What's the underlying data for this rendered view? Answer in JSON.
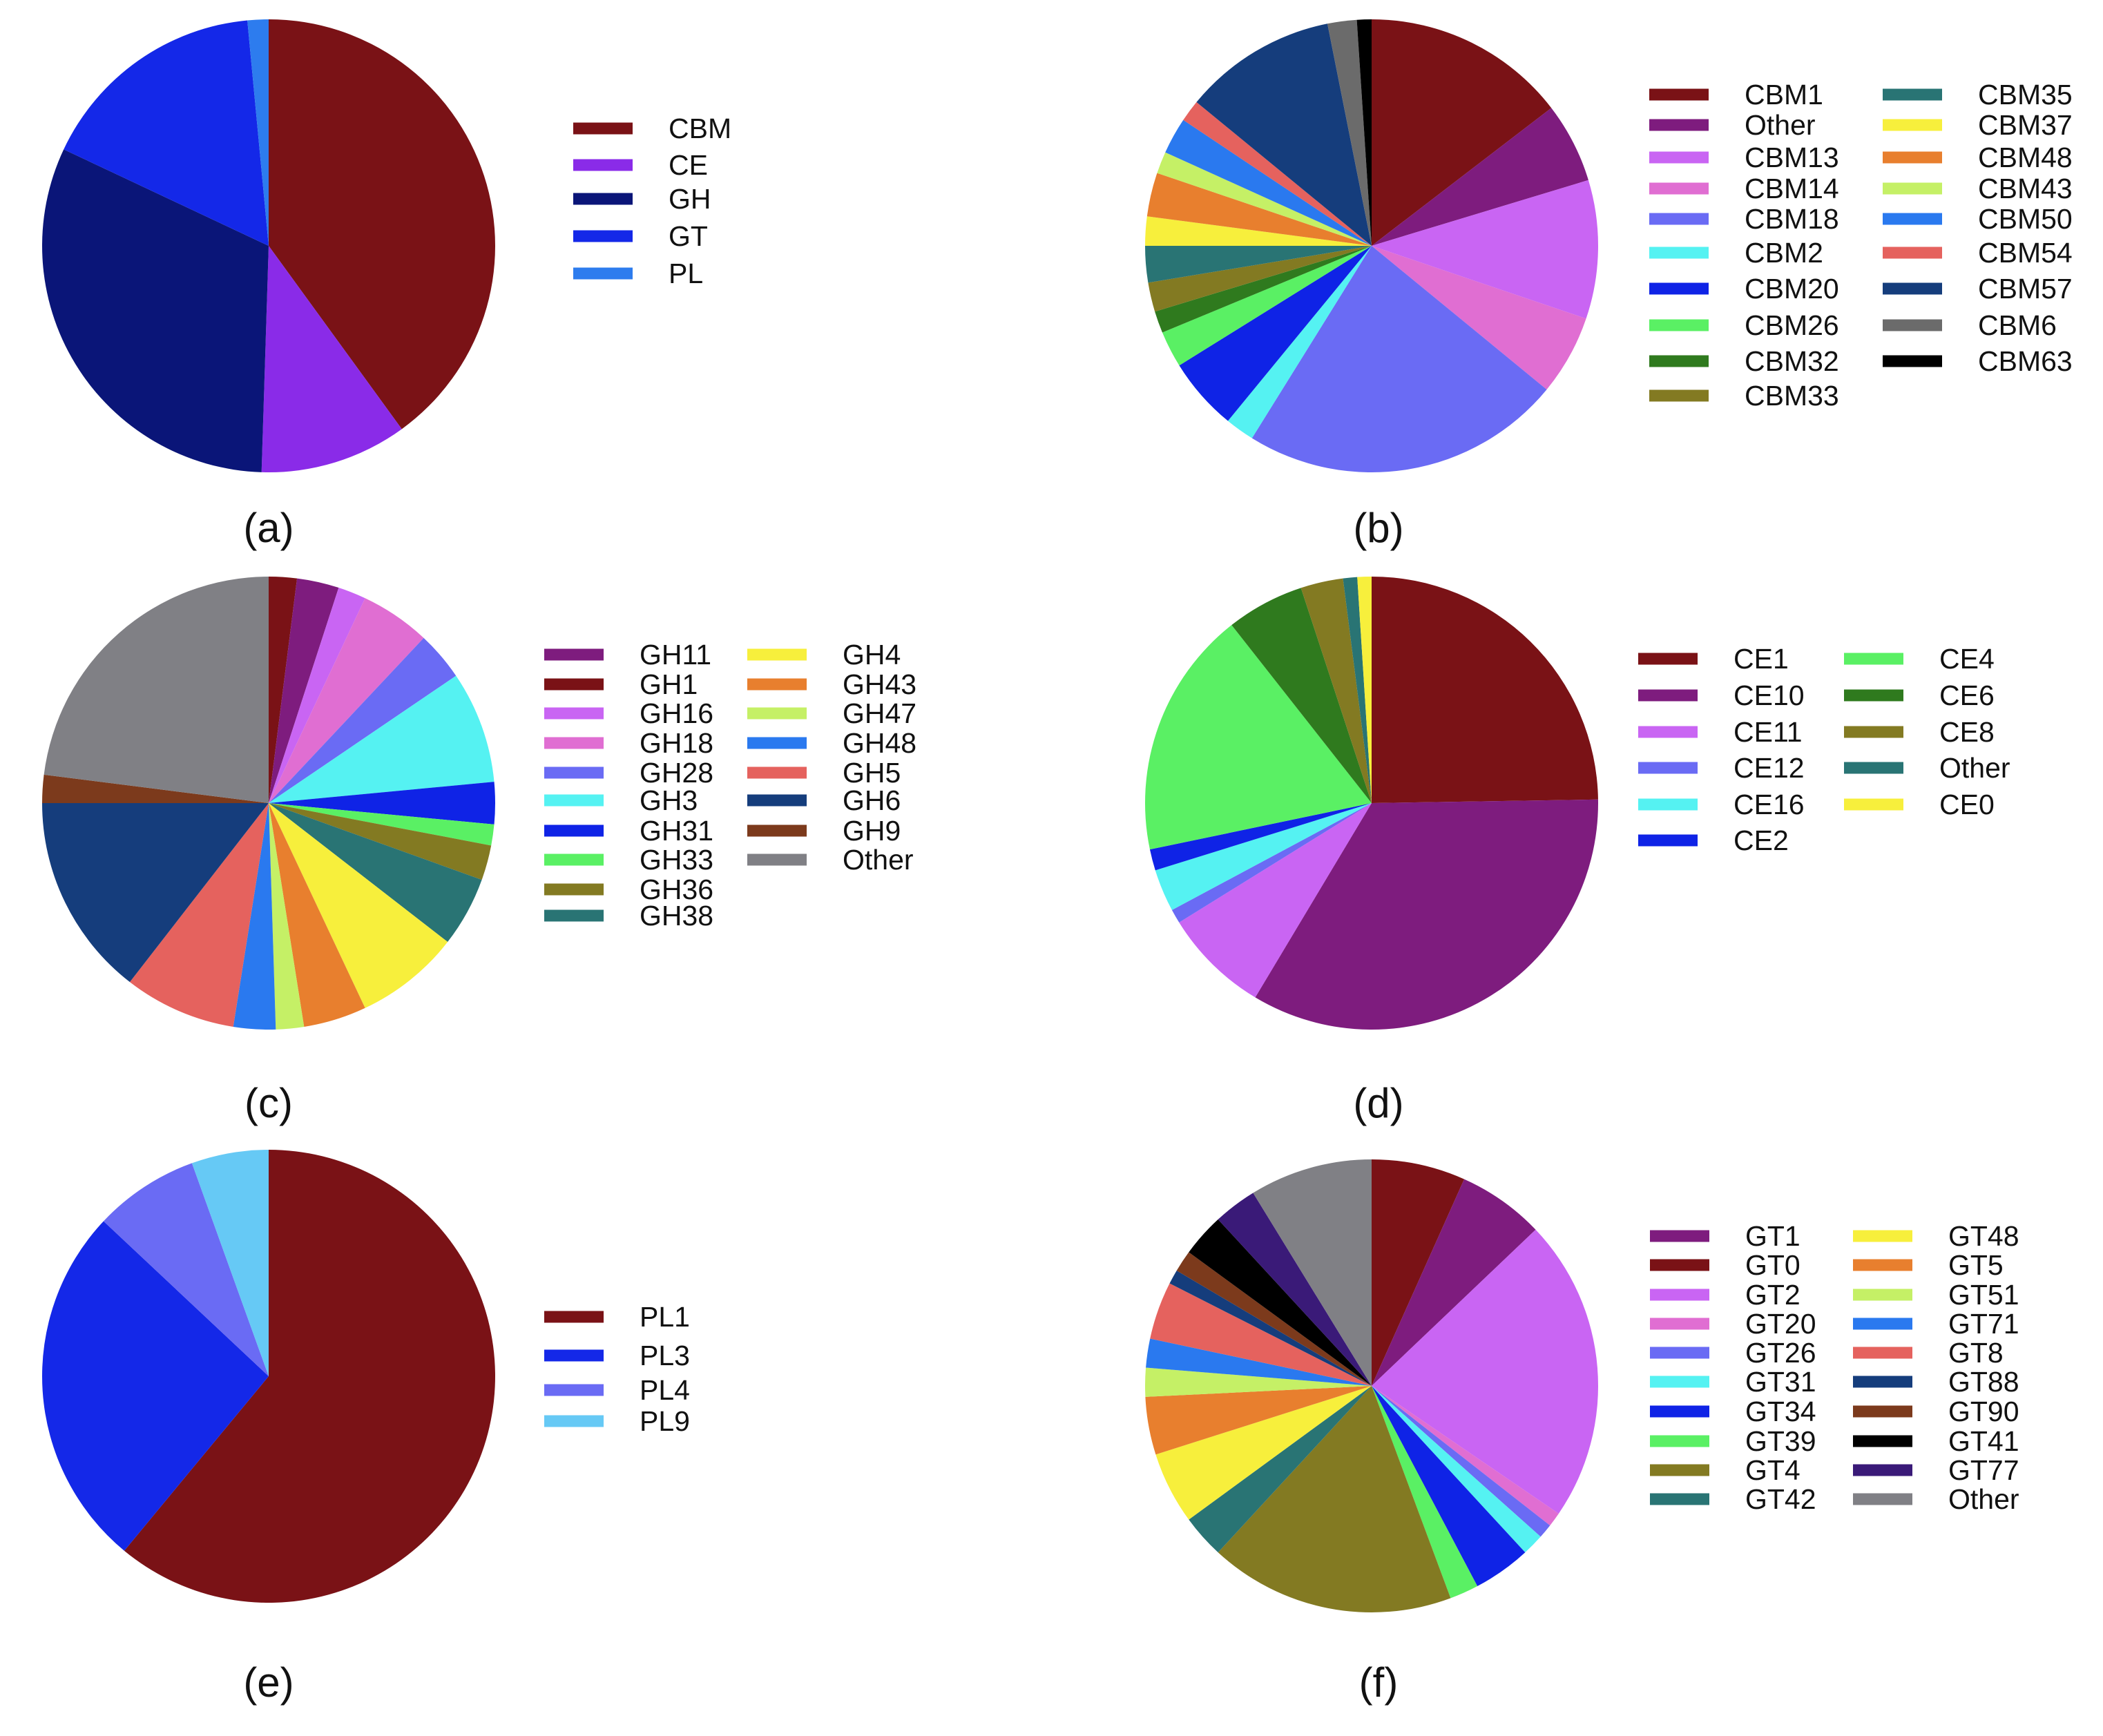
{
  "chart_data": [
    {
      "type": "pie",
      "panel_label": "(a)",
      "slices": [
        {
          "label": "CBM",
          "value": 40.0,
          "color": "#7a1216"
        },
        {
          "label": "CE",
          "value": 10.5,
          "color": "#8a2be8"
        },
        {
          "label": "GH",
          "value": 31.5,
          "color": "#0a1578"
        },
        {
          "label": "GT",
          "value": 16.5,
          "color": "#1428e8"
        },
        {
          "label": "PL",
          "value": 1.5,
          "color": "#2d7cee"
        }
      ],
      "legend": {
        "columns": [
          [
            "CBM",
            "CE",
            "GH",
            "GT",
            "PL"
          ]
        ]
      }
    },
    {
      "type": "pie",
      "panel_label": "(b)",
      "slices": [
        {
          "label": "CBM1",
          "value": 14.0,
          "color": "#7a1216"
        },
        {
          "label": "Other",
          "value": 5.5,
          "color": "#7e1c7e"
        },
        {
          "label": "CBM13",
          "value": 9.5,
          "color": "#c965f3"
        },
        {
          "label": "CBM14",
          "value": 5.5,
          "color": "#e06ed2"
        },
        {
          "label": "CBM18",
          "value": 22.0,
          "color": "#6a6bf4"
        },
        {
          "label": "CBM2",
          "value": 2.0,
          "color": "#55f2f2"
        },
        {
          "label": "CBM20",
          "value": 5.0,
          "color": "#0f23e6"
        },
        {
          "label": "CBM26",
          "value": 2.5,
          "color": "#5af064"
        },
        {
          "label": "CBM32",
          "value": 1.5,
          "color": "#2f7a1e"
        },
        {
          "label": "CBM33",
          "value": 2.0,
          "color": "#837a22"
        },
        {
          "label": "CBM35",
          "value": 2.5,
          "color": "#297474"
        },
        {
          "label": "CBM37",
          "value": 2.0,
          "color": "#f7ef3c"
        },
        {
          "label": "CBM48",
          "value": 3.0,
          "color": "#e87f2e"
        },
        {
          "label": "CBM43",
          "value": 1.5,
          "color": "#c5f066"
        },
        {
          "label": "CBM50",
          "value": 2.5,
          "color": "#2a79ef"
        },
        {
          "label": "CBM54",
          "value": 1.5,
          "color": "#e5625e"
        },
        {
          "label": "CBM57",
          "value": 10.5,
          "color": "#153d7c"
        },
        {
          "label": "CBM6",
          "value": 2.0,
          "color": "#6b6b6b"
        },
        {
          "label": "CBM63",
          "value": 1.0,
          "color": "#000000"
        }
      ],
      "legend": {
        "columns": [
          [
            "CBM1",
            "Other",
            "CBM13",
            "CBM14",
            "CBM18",
            "CBM2",
            "CBM20",
            "CBM26",
            "CBM32",
            "CBM33"
          ],
          [
            "CBM35",
            "CBM37",
            "CBM48",
            "CBM43",
            "CBM50",
            "CBM54",
            "CBM57",
            "CBM6",
            "CBM63"
          ]
        ]
      }
    },
    {
      "type": "pie",
      "panel_label": "(c)",
      "slices": [
        {
          "label": "GH1",
          "value": 2.0,
          "color": "#7a1216"
        },
        {
          "label": "GH11",
          "value": 3.0,
          "color": "#7e1c7e"
        },
        {
          "label": "GH16",
          "value": 2.0,
          "color": "#c965f3"
        },
        {
          "label": "GH18",
          "value": 5.0,
          "color": "#e06ed2"
        },
        {
          "label": "GH28",
          "value": 3.5,
          "color": "#6a6bf4"
        },
        {
          "label": "GH3",
          "value": 8.0,
          "color": "#55f2f2"
        },
        {
          "label": "GH31",
          "value": 3.0,
          "color": "#0f23e6"
        },
        {
          "label": "GH33",
          "value": 1.5,
          "color": "#5af064"
        },
        {
          "label": "GH36",
          "value": 2.5,
          "color": "#837a22"
        },
        {
          "label": "GH38",
          "value": 5.0,
          "color": "#297474"
        },
        {
          "label": "GH4",
          "value": 7.5,
          "color": "#f7ef3c"
        },
        {
          "label": "GH43",
          "value": 4.5,
          "color": "#e87f2e"
        },
        {
          "label": "GH47",
          "value": 2.0,
          "color": "#c5f066"
        },
        {
          "label": "GH48",
          "value": 3.0,
          "color": "#2a79ef"
        },
        {
          "label": "GH5",
          "value": 8.0,
          "color": "#e5625e"
        },
        {
          "label": "GH6",
          "value": 14.5,
          "color": "#153d7c"
        },
        {
          "label": "GH9",
          "value": 2.0,
          "color": "#7c3a1c"
        },
        {
          "label": "Other",
          "value": 23.0,
          "color": "#808085"
        }
      ],
      "legend": {
        "columns": [
          [
            "GH11",
            "GH1",
            "GH16",
            "GH18",
            "GH28",
            "GH3",
            "GH31",
            "GH33",
            "GH36",
            "GH38"
          ],
          [
            "GH4",
            "GH43",
            "GH47",
            "GH48",
            "GH5",
            "GH6",
            "GH9",
            "Other"
          ]
        ]
      }
    },
    {
      "type": "pie",
      "panel_label": "(d)",
      "slices": [
        {
          "label": "CE1",
          "value": 24.5,
          "color": "#7a1216"
        },
        {
          "label": "CE10",
          "value": 33.5,
          "color": "#7e1c7e"
        },
        {
          "label": "CE11",
          "value": 7.5,
          "color": "#c965f3"
        },
        {
          "label": "CE12",
          "value": 1.0,
          "color": "#6a6bf4"
        },
        {
          "label": "CE16",
          "value": 3.0,
          "color": "#55f2f2"
        },
        {
          "label": "CE2",
          "value": 1.5,
          "color": "#0f23e6"
        },
        {
          "label": "CE4",
          "value": 17.5,
          "color": "#5af064"
        },
        {
          "label": "CE6",
          "value": 5.5,
          "color": "#2f7a1e"
        },
        {
          "label": "CE8",
          "value": 3.0,
          "color": "#837a22"
        },
        {
          "label": "Other",
          "value": 1.0,
          "color": "#297474"
        },
        {
          "label": "CE0",
          "value": 1.0,
          "color": "#f7ef3c"
        }
      ],
      "legend": {
        "columns": [
          [
            "CE1",
            "CE10",
            "CE11",
            "CE12",
            "CE16",
            "CE2"
          ],
          [
            "CE4",
            "CE6",
            "CE8",
            "Other",
            "CE0"
          ]
        ]
      }
    },
    {
      "type": "pie",
      "panel_label": "(e)",
      "slices": [
        {
          "label": "PL1",
          "value": 61.0,
          "color": "#7a1216"
        },
        {
          "label": "PL3",
          "value": 26.0,
          "color": "#1428e8"
        },
        {
          "label": "PL4",
          "value": 7.5,
          "color": "#6a6bf4"
        },
        {
          "label": "PL9",
          "value": 5.5,
          "color": "#66c9f5"
        }
      ],
      "legend": {
        "columns": [
          [
            "PL1",
            "PL3",
            "PL4",
            "PL9"
          ]
        ]
      }
    },
    {
      "type": "pie",
      "panel_label": "(f)",
      "slices": [
        {
          "label": "GT0",
          "value": 6.5,
          "color": "#7a1216"
        },
        {
          "label": "GT1",
          "value": 6.0,
          "color": "#7e1c7e"
        },
        {
          "label": "GT2",
          "value": 21.0,
          "color": "#c965f3"
        },
        {
          "label": "GT20",
          "value": 1.0,
          "color": "#e06ed2"
        },
        {
          "label": "GT26",
          "value": 1.0,
          "color": "#6a6bf4"
        },
        {
          "label": "GT31",
          "value": 1.5,
          "color": "#55f2f2"
        },
        {
          "label": "GT34",
          "value": 4.0,
          "color": "#0f23e6"
        },
        {
          "label": "GT39",
          "value": 2.0,
          "color": "#5af064"
        },
        {
          "label": "GT4",
          "value": 17.0,
          "color": "#837a22"
        },
        {
          "label": "GT42",
          "value": 3.0,
          "color": "#297474"
        },
        {
          "label": "GT48",
          "value": 5.0,
          "color": "#f7ef3c"
        },
        {
          "label": "GT5",
          "value": 4.0,
          "color": "#e87f2e"
        },
        {
          "label": "GT51",
          "value": 2.0,
          "color": "#c5f066"
        },
        {
          "label": "GT71",
          "value": 2.0,
          "color": "#2a79ef"
        },
        {
          "label": "GT8",
          "value": 4.0,
          "color": "#e5625e"
        },
        {
          "label": "GT88",
          "value": 1.0,
          "color": "#153d7c"
        },
        {
          "label": "GT90",
          "value": 1.5,
          "color": "#7c3a1c"
        },
        {
          "label": "GT41",
          "value": 3.0,
          "color": "#000000"
        },
        {
          "label": "GT77",
          "value": 3.0,
          "color": "#3a1a78"
        },
        {
          "label": "Other",
          "value": 8.5,
          "color": "#808085"
        }
      ],
      "legend": {
        "columns": [
          [
            "GT1",
            "GT0",
            "GT2",
            "GT20",
            "GT26",
            "GT31",
            "GT34",
            "GT39",
            "GT4",
            "GT42"
          ],
          [
            "GT48",
            "GT5",
            "GT51",
            "GT71",
            "GT8",
            "GT88",
            "GT90",
            "GT41",
            "GT77",
            "Other"
          ]
        ]
      }
    }
  ]
}
